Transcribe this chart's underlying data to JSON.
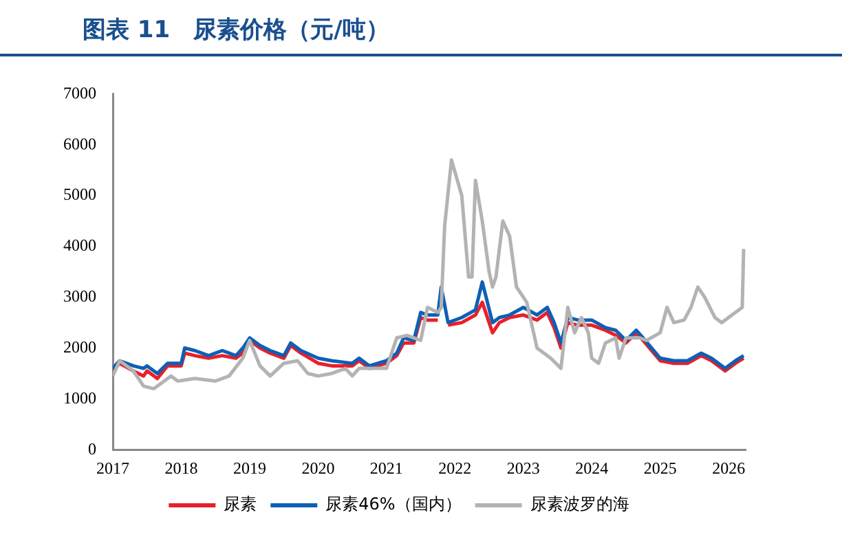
{
  "chart_data": {
    "type": "line",
    "title": "图表 11　尿素价格（元/吨）",
    "xlim": [
      2017,
      2026.25
    ],
    "xticks": [
      2017,
      2018,
      2019,
      2020,
      2021,
      2022,
      2023,
      2024,
      2025,
      2026
    ],
    "ylim": [
      0,
      7000
    ],
    "yticks": [
      0,
      1000,
      2000,
      3000,
      4000,
      5000,
      6000,
      7000
    ],
    "grid": false,
    "legend": "bottom",
    "marker": "none",
    "line_style": "solid",
    "series": [
      {
        "name": "尿素",
        "color": "#e8202a",
        "x": [
          2017.0,
          2017.1,
          2017.3,
          2017.45,
          2017.5,
          2017.65,
          2017.8,
          2018.0,
          2018.05,
          2018.2,
          2018.4,
          2018.6,
          2018.8,
          2018.9,
          2019.0,
          2019.15,
          2019.3,
          2019.5,
          2019.6,
          2019.75,
          2020.0,
          2020.2,
          2020.5,
          2020.6,
          2020.75,
          2021.0,
          2021.05,
          2021.15,
          2021.25,
          2021.4,
          2021.5,
          2021.6,
          2021.75,
          2021.8,
          2021.9,
          2022.1,
          2022.3,
          2022.4,
          2022.55,
          2022.65,
          2022.8,
          2023.0,
          2023.2,
          2023.35,
          2023.45,
          2023.55,
          2023.65,
          2023.8,
          2024.0,
          2024.2,
          2024.35,
          2024.5,
          2024.65,
          2024.75,
          2025.0,
          2025.2,
          2025.4,
          2025.6,
          2025.75,
          2025.95,
          2026.1,
          2026.22
        ],
        "values": [
          1550,
          1700,
          1550,
          1450,
          1550,
          1400,
          1650,
          1650,
          1900,
          1850,
          1800,
          1850,
          1800,
          1900,
          2150,
          2000,
          1900,
          1800,
          2050,
          1900,
          1700,
          1650,
          1650,
          1750,
          1600,
          1700,
          1750,
          1850,
          2100,
          2100,
          2600,
          2550,
          2550,
          null,
          2450,
          2500,
          2650,
          2900,
          2300,
          2500,
          2600,
          2650,
          2550,
          2700,
          2400,
          2000,
          2500,
          2450,
          2450,
          2350,
          2250,
          2100,
          2300,
          2150,
          1750,
          1700,
          1700,
          1850,
          1750,
          1550,
          1700,
          1800
        ]
      },
      {
        "name": "尿素46%（国内）",
        "color": "#0f5fb5",
        "x": [
          2017.0,
          2017.1,
          2017.3,
          2017.45,
          2017.5,
          2017.65,
          2017.8,
          2018.0,
          2018.05,
          2018.2,
          2018.4,
          2018.6,
          2018.8,
          2018.9,
          2019.0,
          2019.15,
          2019.3,
          2019.5,
          2019.6,
          2019.75,
          2020.0,
          2020.2,
          2020.5,
          2020.6,
          2020.75,
          2021.0,
          2021.05,
          2021.15,
          2021.25,
          2021.4,
          2021.5,
          2021.6,
          2021.75,
          2021.8,
          2021.9,
          2022.1,
          2022.3,
          2022.4,
          2022.55,
          2022.65,
          2022.8,
          2023.0,
          2023.2,
          2023.35,
          2023.45,
          2023.55,
          2023.65,
          2023.8,
          2024.0,
          2024.2,
          2024.35,
          2024.5,
          2024.65,
          2024.75,
          2025.0,
          2025.2,
          2025.4,
          2025.6,
          2025.75,
          2025.95,
          2026.1,
          2026.22
        ],
        "values": [
          1600,
          1750,
          1650,
          1600,
          1650,
          1500,
          1700,
          1700,
          2000,
          1950,
          1850,
          1950,
          1850,
          2000,
          2200,
          2050,
          1950,
          1850,
          2100,
          1950,
          1800,
          1750,
          1700,
          1800,
          1650,
          1750,
          1800,
          1900,
          2200,
          2150,
          2700,
          2650,
          2650,
          3200,
          2500,
          2600,
          2750,
          3300,
          2500,
          2600,
          2650,
          2800,
          2650,
          2800,
          2500,
          2100,
          2600,
          2550,
          2550,
          2400,
          2350,
          2150,
          2350,
          2200,
          1800,
          1750,
          1750,
          1900,
          1800,
          1600,
          1750,
          1850
        ]
      },
      {
        "name": "尿素波罗的海",
        "color": "#b3b3b3",
        "x": [
          2017.0,
          2017.1,
          2017.3,
          2017.45,
          2017.6,
          2017.7,
          2017.85,
          2017.95,
          2018.2,
          2018.5,
          2018.7,
          2018.9,
          2019.0,
          2019.15,
          2019.3,
          2019.5,
          2019.7,
          2019.85,
          2020.0,
          2020.2,
          2020.4,
          2020.5,
          2020.6,
          2020.8,
          2021.0,
          2021.15,
          2021.3,
          2021.5,
          2021.6,
          2021.75,
          2021.8,
          2021.85,
          2021.95,
          2022.1,
          2022.2,
          2022.25,
          2022.3,
          2022.4,
          2022.5,
          2022.55,
          2022.6,
          2022.7,
          2022.8,
          2022.9,
          2023.05,
          2023.2,
          2023.4,
          2023.55,
          2023.65,
          2023.75,
          2023.85,
          2023.95,
          2024.0,
          2024.1,
          2024.2,
          2024.35,
          2024.4,
          2024.5,
          2024.7,
          2024.8,
          2025.0,
          2025.1,
          2025.2,
          2025.35,
          2025.45,
          2025.55,
          2025.65,
          2025.8,
          2025.9,
          2026.05,
          2026.2,
          2026.22
        ],
        "values": [
          1450,
          1750,
          1550,
          1250,
          1200,
          1300,
          1450,
          1350,
          1400,
          1350,
          1450,
          1800,
          2150,
          1650,
          1450,
          1700,
          1750,
          1500,
          1450,
          1500,
          1600,
          1450,
          1600,
          1600,
          1600,
          2200,
          2250,
          2150,
          2800,
          2700,
          2800,
          4400,
          5700,
          5000,
          3400,
          3400,
          5300,
          4500,
          3500,
          3200,
          3400,
          4500,
          4200,
          3200,
          2900,
          2000,
          1800,
          1600,
          2800,
          2300,
          2600,
          2300,
          1800,
          1700,
          2100,
          2200,
          1800,
          2200,
          2200,
          2150,
          2300,
          2800,
          2500,
          2550,
          2800,
          3200,
          3000,
          2600,
          2500,
          2650,
          2800,
          3950
        ]
      }
    ]
  }
}
